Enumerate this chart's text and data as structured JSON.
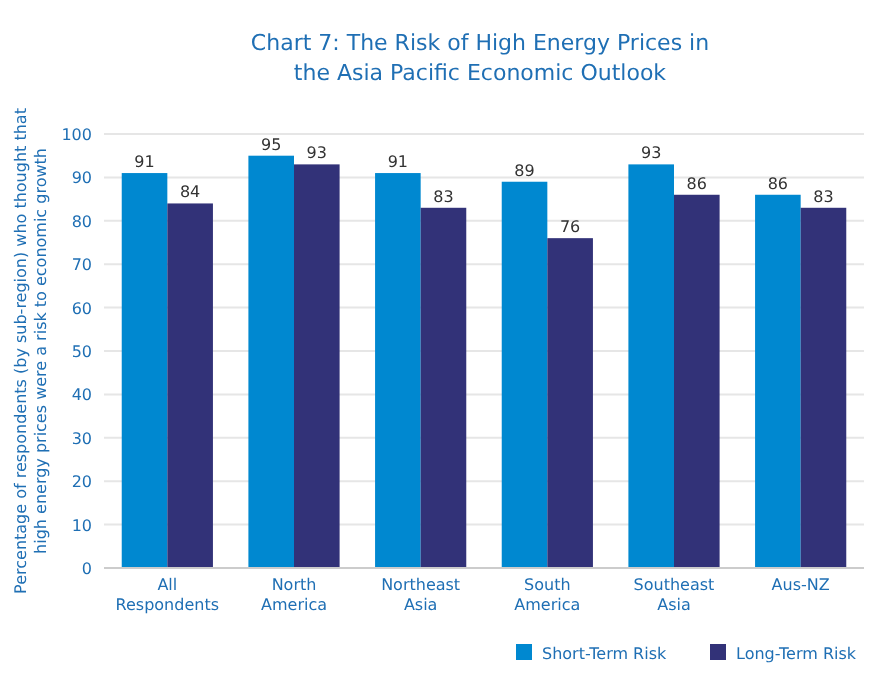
{
  "chart_data": {
    "type": "bar",
    "title": "Chart 7: The Risk of High Energy Prices in the Asia Pacific Economic Outlook",
    "ylabel": "Percentage of respondents (by sub-region) who thought that high energy prices were a risk to economic growth",
    "categories": [
      "All Respondents",
      "North America",
      "Northeast Asia",
      "South America",
      "Southeast Asia",
      "Aus-NZ"
    ],
    "series": [
      {
        "name": "Short-Term Risk",
        "color": "#0088d0",
        "values": [
          91,
          95,
          91,
          89,
          93,
          86
        ]
      },
      {
        "name": "Long-Term Risk",
        "color": "#323278",
        "values": [
          84,
          93,
          83,
          76,
          86,
          83
        ]
      }
    ],
    "ylim": [
      0,
      100
    ],
    "yticks": [
      0,
      10,
      20,
      30,
      40,
      50,
      60,
      70,
      80,
      90,
      100
    ],
    "grid": "y",
    "legend": "bottom right",
    "data_labels": true
  }
}
